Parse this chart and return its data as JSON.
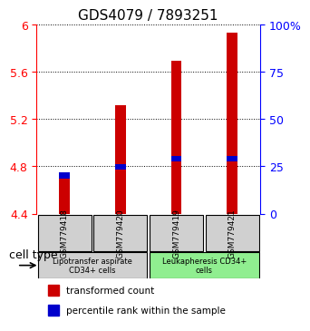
{
  "title": "GDS4079 / 7893251",
  "samples": [
    "GSM779418",
    "GSM779420",
    "GSM779419",
    "GSM779421"
  ],
  "red_values": [
    4.73,
    5.32,
    5.69,
    5.93
  ],
  "blue_values": [
    4.7,
    4.77,
    4.84,
    4.84
  ],
  "ylim_left": [
    4.4,
    6.0
  ],
  "ylim_right": [
    0,
    100
  ],
  "yticks_left": [
    4.4,
    4.8,
    5.2,
    5.6,
    6.0
  ],
  "ytick_labels_left": [
    "4.4",
    "4.8",
    "5.2",
    "5.6",
    "6"
  ],
  "yticks_right": [
    0,
    25,
    50,
    75,
    100
  ],
  "ytick_labels_right": [
    "0",
    "25",
    "50",
    "75",
    "100%"
  ],
  "cell_groups": [
    {
      "label": "Lipotransfer aspirate\nCD34+ cells",
      "samples": [
        0,
        1
      ],
      "color": "#d0d0d0"
    },
    {
      "label": "Leukapheresis CD34+\ncells",
      "samples": [
        2,
        3
      ],
      "color": "#90ee90"
    }
  ],
  "bar_width": 0.35,
  "red_color": "#cc0000",
  "blue_color": "#0000cc",
  "grid_linestyle": "dotted",
  "legend_red": "transformed count",
  "legend_blue": "percentile rank within the sample",
  "cell_type_label": "cell type",
  "title_fontsize": 11,
  "tick_fontsize": 9,
  "label_fontsize": 8.5
}
